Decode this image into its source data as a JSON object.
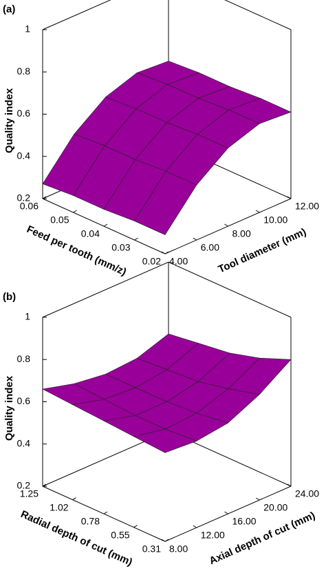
{
  "chart_data": [
    {
      "type": "surface",
      "panel_label": "(a)",
      "zlabel": "Quality index",
      "xlabel": "Feed per tooth (mm/z)",
      "ylabel": "Tool diameter (mm)",
      "color": "#990099",
      "x": [
        0.02,
        0.03,
        0.04,
        0.05,
        0.06
      ],
      "y": [
        4,
        6,
        8,
        10,
        12
      ],
      "values": [
        [
          0.29,
          0.46,
          0.57,
          0.62,
          0.61
        ],
        [
          0.29,
          0.46,
          0.57,
          0.62,
          0.61
        ],
        [
          0.28,
          0.45,
          0.56,
          0.61,
          0.6
        ],
        [
          0.28,
          0.45,
          0.56,
          0.61,
          0.6
        ],
        [
          0.27,
          0.44,
          0.55,
          0.6,
          0.59
        ]
      ],
      "xlim": [
        0.02,
        0.06
      ],
      "xticks": [
        0.02,
        0.03,
        0.04,
        0.05,
        0.06
      ],
      "ylim": [
        4,
        12
      ],
      "yticks": [
        {
          "value": 4,
          "label": "4.00"
        },
        {
          "value": 6,
          "label": "6.00"
        },
        {
          "value": 8,
          "label": "8.00"
        },
        {
          "value": 10,
          "label": "10.00"
        },
        {
          "value": 12,
          "label": "12.00"
        }
      ],
      "zlim": [
        0.2,
        1
      ],
      "zticks": [
        0.2,
        0.4,
        0.6,
        0.8,
        1
      ]
    },
    {
      "type": "surface",
      "panel_label": "(b)",
      "zlabel": "Quality index",
      "xlabel": "Radial depth of cut (mm)",
      "ylabel": "Axial depth of cut (mm)",
      "color": "#990099",
      "x": [
        0.31,
        0.55,
        0.78,
        1.02,
        1.25
      ],
      "y": [
        8,
        12,
        16,
        20,
        24
      ],
      "values": [
        [
          0.62,
          0.61,
          0.63,
          0.7,
          0.8
        ],
        [
          0.63,
          0.6,
          0.61,
          0.66,
          0.74
        ],
        [
          0.64,
          0.6,
          0.6,
          0.63,
          0.7
        ],
        [
          0.65,
          0.61,
          0.6,
          0.62,
          0.68
        ],
        [
          0.66,
          0.62,
          0.6,
          0.61,
          0.66
        ]
      ],
      "xlim": [
        0.31,
        1.25
      ],
      "xticks": [
        0.31,
        0.55,
        0.78,
        1.02,
        1.25
      ],
      "ylim": [
        8,
        24
      ],
      "yticks": [
        {
          "value": 8,
          "label": "8.00"
        },
        {
          "value": 12,
          "label": "12.00"
        },
        {
          "value": 16,
          "label": "16.00"
        },
        {
          "value": 20,
          "label": "20.00"
        },
        {
          "value": 24,
          "label": "24.00"
        }
      ],
      "zlim": [
        0.2,
        1
      ],
      "zticks": [
        0.2,
        0.4,
        0.6,
        0.8,
        1
      ]
    }
  ]
}
